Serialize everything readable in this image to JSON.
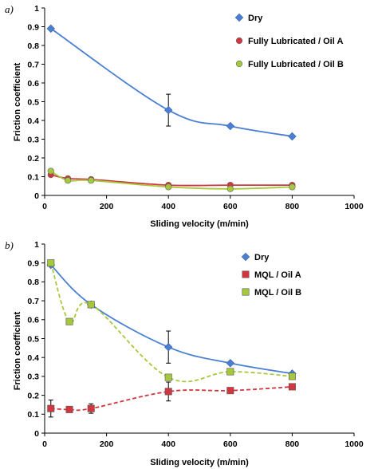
{
  "chart_data": [
    {
      "type": "scatter",
      "panel_label": "a)",
      "xlabel": "Sliding velocity (m/min)",
      "ylabel": "Friction coefficient",
      "xlim": [
        0,
        1000
      ],
      "ylim": [
        0,
        1
      ],
      "xticks": [
        0,
        200,
        400,
        600,
        800,
        1000
      ],
      "yticks": [
        0,
        0.1,
        0.2,
        0.3,
        0.4,
        0.5,
        0.6,
        0.7,
        0.8,
        0.9,
        1
      ],
      "ytick_labels": [
        "0",
        "0.1",
        "0.2",
        "0.3",
        "0.4",
        "0.5",
        "0.6",
        "0.7",
        "0.8",
        "0.9",
        "1"
      ],
      "grid": false,
      "legend_position": "top-right",
      "series": [
        {
          "name": "Dry",
          "marker": "diamond",
          "color": "#4a7fd4",
          "line_style": "solid",
          "points": [
            {
              "x": 20,
              "y": 0.89
            },
            {
              "x": 400,
              "y": 0.455,
              "err": 0.085
            },
            {
              "x": 600,
              "y": 0.37
            },
            {
              "x": 800,
              "y": 0.315
            }
          ]
        },
        {
          "name": "Fully Lubricated / Oil A",
          "marker": "circle",
          "color": "#d2363f",
          "line_style": "solid",
          "points": [
            {
              "x": 20,
              "y": 0.11
            },
            {
              "x": 75,
              "y": 0.09
            },
            {
              "x": 150,
              "y": 0.085
            },
            {
              "x": 400,
              "y": 0.055
            },
            {
              "x": 600,
              "y": 0.055
            },
            {
              "x": 800,
              "y": 0.055
            }
          ]
        },
        {
          "name": "Fully Lubricated / Oil B",
          "marker": "circle",
          "color": "#a6c93c",
          "line_style": "solid",
          "points": [
            {
              "x": 20,
              "y": 0.13
            },
            {
              "x": 75,
              "y": 0.08
            },
            {
              "x": 150,
              "y": 0.08
            },
            {
              "x": 400,
              "y": 0.045
            },
            {
              "x": 600,
              "y": 0.035
            },
            {
              "x": 800,
              "y": 0.045
            }
          ]
        }
      ]
    },
    {
      "type": "scatter",
      "panel_label": "b)",
      "xlabel": "Sliding velocity (m/min)",
      "ylabel": "Friction coefficient",
      "xlim": [
        0,
        1000
      ],
      "ylim": [
        0,
        1
      ],
      "xticks": [
        0,
        200,
        400,
        600,
        800,
        1000
      ],
      "yticks": [
        0,
        0.1,
        0.2,
        0.3,
        0.4,
        0.5,
        0.6,
        0.7,
        0.8,
        0.9,
        1
      ],
      "ytick_labels": [
        "0",
        "0.1",
        "0.2",
        "0.3",
        "0.4",
        "0.5",
        "0.6",
        "0.7",
        "0.8",
        "0.9",
        "1"
      ],
      "grid": false,
      "legend_position": "top-right",
      "series": [
        {
          "name": "Dry",
          "marker": "diamond",
          "color": "#4a7fd4",
          "line_style": "solid",
          "points": [
            {
              "x": 20,
              "y": 0.89
            },
            {
              "x": 150,
              "y": 0.68
            },
            {
              "x": 400,
              "y": 0.455,
              "err": 0.085
            },
            {
              "x": 600,
              "y": 0.37
            },
            {
              "x": 800,
              "y": 0.315
            }
          ]
        },
        {
          "name": "MQL / Oil A",
          "marker": "square",
          "color": "#d2363f",
          "line_style": "dashed",
          "points": [
            {
              "x": 20,
              "y": 0.13,
              "err": 0.045
            },
            {
              "x": 80,
              "y": 0.125
            },
            {
              "x": 150,
              "y": 0.13,
              "err": 0.025
            },
            {
              "x": 400,
              "y": 0.22,
              "err": 0.05
            },
            {
              "x": 600,
              "y": 0.225
            },
            {
              "x": 800,
              "y": 0.245
            }
          ]
        },
        {
          "name": "MQL / Oil B",
          "marker": "square",
          "color": "#a6c93c",
          "line_style": "dashed",
          "points": [
            {
              "x": 20,
              "y": 0.9
            },
            {
              "x": 80,
              "y": 0.59
            },
            {
              "x": 150,
              "y": 0.68
            },
            {
              "x": 400,
              "y": 0.295
            },
            {
              "x": 600,
              "y": 0.325
            },
            {
              "x": 800,
              "y": 0.3
            }
          ]
        }
      ]
    }
  ]
}
